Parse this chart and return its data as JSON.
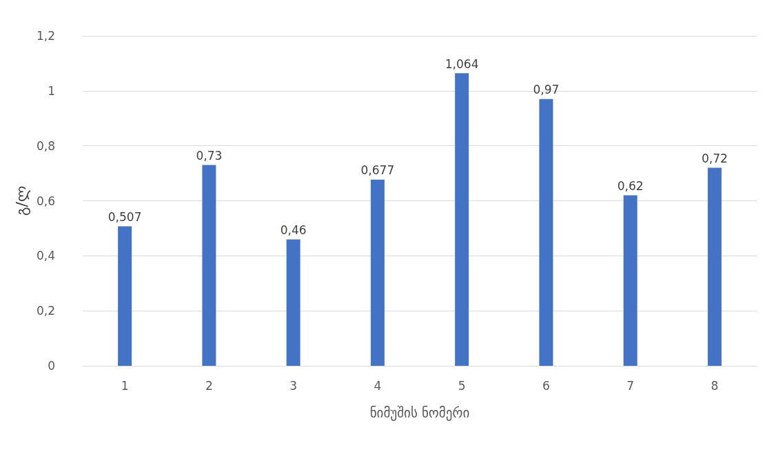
{
  "chart_data": {
    "type": "bar",
    "xlabel": "ნიმუშის ნომერი",
    "ylabel": "გ/ლ",
    "categories": [
      "1",
      "2",
      "3",
      "4",
      "5",
      "6",
      "7",
      "8"
    ],
    "values": [
      0.507,
      0.73,
      0.46,
      0.677,
      1.064,
      0.97,
      0.62,
      0.72
    ],
    "value_labels": [
      "0,507",
      "0,73",
      "0,46",
      "0,677",
      "1,064",
      "0,97",
      "0,62",
      "0,72"
    ],
    "color": "#4472c4",
    "ylim": [
      0,
      1.2
    ],
    "yticks": [
      0,
      {
        "value": 0.2,
        "label": "0,2"
      },
      {
        "value": 0.4,
        "label": "0,4"
      },
      {
        "value": 0.6,
        "label": "0,6"
      },
      {
        "value": 0.8,
        "label": "0,8"
      },
      1,
      {
        "value": 1.2,
        "label": "1,2"
      }
    ],
    "grid": "y"
  }
}
